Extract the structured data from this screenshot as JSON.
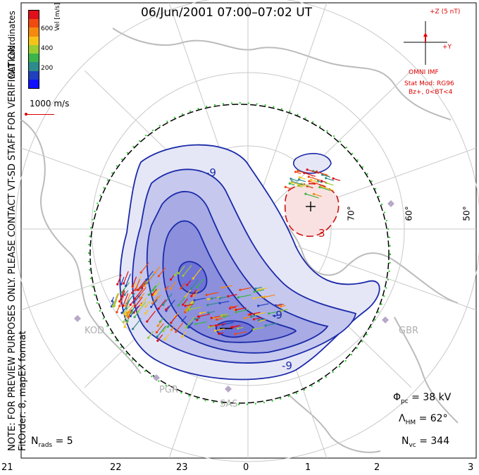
{
  "title": "06/Jun/2001 07:00–07:02 UT",
  "colorbar": {
    "ticks": [
      "600",
      "400",
      "200"
    ],
    "unit_label": "Vel [m/s]",
    "colors": [
      "#e0101a",
      "#f04a10",
      "#f58a10",
      "#f6c419",
      "#9acd32",
      "#3cb44b",
      "#2e8b8b",
      "#2040c0",
      "#1010ff"
    ]
  },
  "coord_label": "MLT coordinates",
  "scale": {
    "label": "1000 m/s",
    "color": "#dd0000"
  },
  "note": {
    "line1": "NOTE: FOR PREVIEW PURPOSES ONLY. PLEASE CONTACT VT-SD STAFF FOR VERIFICATION.",
    "line2": "FitOrder: 8, mapEX format"
  },
  "imf": {
    "z_label": "+Z (5 nT)",
    "y_label": "+Y",
    "source": "OMNI IMF",
    "model": "Stat Mod: RG96",
    "condition": "Bz+, 0<BT<4"
  },
  "stats": {
    "phi_label": "Φ",
    "phi_sub": "pc",
    "phi_value": "= 38 kV",
    "lambda_label": "Λ",
    "lambda_sub": "HM",
    "lambda_value": "= 62°",
    "nvc_label": "N",
    "nvc_sub": "vc",
    "nvc_value": "= 344",
    "nrads_label": "N",
    "nrads_sub": "rads",
    "nrads_value": "= 5"
  },
  "mlt_ticks": [
    "21",
    "22",
    "23",
    "0",
    "1",
    "2",
    "3"
  ],
  "lat_labels": [
    "70°",
    "60°",
    "50°"
  ],
  "radars": [
    "KOD",
    "PGR",
    "SAS",
    "GBR"
  ],
  "contour_labels": [
    "-9",
    "-9",
    "-9",
    "3"
  ],
  "colors": {
    "negative_contour": "#1a2aa8",
    "positive_contour": "#cc1010",
    "negative_fill": "#6f73d6",
    "positive_fill": "#f4c6c6",
    "grid": "#c8c8c8",
    "land": "#bbbbbb",
    "boundary_green": "#22cc22"
  }
}
